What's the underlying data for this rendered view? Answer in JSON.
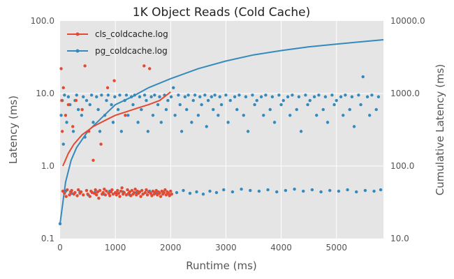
{
  "chart_data": {
    "type": "scatter",
    "title": "1K Object Reads (Cold Cache)",
    "xlabel": "Runtime (ms)",
    "ylabel": "Latency (ms)",
    "y2label": "Cumulative Latency (ms)",
    "xlim": [
      0,
      5850
    ],
    "ylim": [
      0.1,
      100
    ],
    "y2lim": [
      10,
      10000
    ],
    "yscale": "log",
    "y2scale": "log",
    "grid": true,
    "legend_position": "top-left",
    "x_ticks": [
      "0",
      "1000",
      "2000",
      "3000",
      "4000",
      "5000"
    ],
    "x_tick_values": [
      0,
      1000,
      2000,
      3000,
      4000,
      5000
    ],
    "y_ticks": [
      "0.1",
      "1.0",
      "10.0",
      "100.0"
    ],
    "y_tick_values": [
      0.1,
      1,
      10,
      100
    ],
    "y2_ticks": [
      "10.0",
      "100.0",
      "1000.0",
      "10000.0"
    ],
    "y2_tick_values": [
      10,
      100,
      1000,
      10000
    ],
    "series": [
      {
        "name": "cls_coldcache.log",
        "color": "#E24A33",
        "points": [
          [
            20,
            22
          ],
          [
            30,
            8
          ],
          [
            40,
            3
          ],
          [
            50,
            0.45
          ],
          [
            60,
            12
          ],
          [
            80,
            0.42
          ],
          [
            100,
            5
          ],
          [
            110,
            0.38
          ],
          [
            130,
            0.47
          ],
          [
            150,
            7
          ],
          [
            170,
            0.4
          ],
          [
            190,
            0.44
          ],
          [
            210,
            0.46
          ],
          [
            230,
            3.5
          ],
          [
            250,
            0.41
          ],
          [
            270,
            0.43
          ],
          [
            290,
            8
          ],
          [
            310,
            0.39
          ],
          [
            330,
            0.47
          ],
          [
            360,
            0.42
          ],
          [
            380,
            0.44
          ],
          [
            400,
            6
          ],
          [
            420,
            0.4
          ],
          [
            450,
            24
          ],
          [
            480,
            0.46
          ],
          [
            500,
            0.41
          ],
          [
            520,
            3
          ],
          [
            540,
            0.38
          ],
          [
            560,
            0.45
          ],
          [
            580,
            0.43
          ],
          [
            600,
            1.2
          ],
          [
            620,
            0.42
          ],
          [
            640,
            0.47
          ],
          [
            660,
            0.4
          ],
          [
            680,
            0.44
          ],
          [
            700,
            0.36
          ],
          [
            720,
            0.46
          ],
          [
            740,
            2
          ],
          [
            760,
            0.41
          ],
          [
            780,
            0.43
          ],
          [
            800,
            0.48
          ],
          [
            820,
            0.4
          ],
          [
            840,
            0.45
          ],
          [
            860,
            12
          ],
          [
            880,
            0.42
          ],
          [
            900,
            0.39
          ],
          [
            920,
            0.44
          ],
          [
            940,
            0.47
          ],
          [
            960,
            0.41
          ],
          [
            980,
            15
          ],
          [
            1000,
            0.43
          ],
          [
            1020,
            0.4
          ],
          [
            1040,
            0.46
          ],
          [
            1060,
            0.42
          ],
          [
            1080,
            0.38
          ],
          [
            1100,
            0.45
          ],
          [
            1120,
            0.5
          ],
          [
            1140,
            0.41
          ],
          [
            1160,
            0.43
          ],
          [
            1180,
            5
          ],
          [
            1200,
            0.4
          ],
          [
            1220,
            0.47
          ],
          [
            1240,
            0.42
          ],
          [
            1260,
            0.44
          ],
          [
            1280,
            0.39
          ],
          [
            1300,
            0.46
          ],
          [
            1320,
            0.41
          ],
          [
            1340,
            0.43
          ],
          [
            1360,
            0.48
          ],
          [
            1380,
            0.4
          ],
          [
            1400,
            0.45
          ],
          [
            1420,
            0.42
          ],
          [
            1440,
            0.44
          ],
          [
            1460,
            0.38
          ],
          [
            1480,
            0.46
          ],
          [
            1500,
            0.41
          ],
          [
            1520,
            24
          ],
          [
            1540,
            0.43
          ],
          [
            1560,
            0.47
          ],
          [
            1580,
            0.4
          ],
          [
            1600,
            0.44
          ],
          [
            1620,
            22
          ],
          [
            1640,
            0.42
          ],
          [
            1660,
            0.39
          ],
          [
            1680,
            0.45
          ],
          [
            1700,
            0.41
          ],
          [
            1720,
            0.43
          ],
          [
            1740,
            0.46
          ],
          [
            1760,
            0.4
          ],
          [
            1780,
            0.44
          ],
          [
            1800,
            0.42
          ],
          [
            1820,
            0.38
          ],
          [
            1840,
            0.45
          ],
          [
            1860,
            0.41
          ],
          [
            1880,
            0.43
          ],
          [
            1900,
            0.47
          ],
          [
            1920,
            0.4
          ],
          [
            1940,
            0.44
          ],
          [
            1960,
            0.42
          ],
          [
            1980,
            0.39
          ],
          [
            2000,
            0.45
          ],
          [
            2020,
            0.41
          ]
        ],
        "cumulative": [
          [
            50,
            100
          ],
          [
            150,
            150
          ],
          [
            250,
            200
          ],
          [
            400,
            270
          ],
          [
            600,
            350
          ],
          [
            800,
            420
          ],
          [
            1000,
            500
          ],
          [
            1200,
            560
          ],
          [
            1400,
            630
          ],
          [
            1600,
            700
          ],
          [
            1800,
            800
          ],
          [
            2000,
            1050
          ]
        ]
      },
      {
        "name": "pg_coldcache.log",
        "color": "#348ABD",
        "points": [
          [
            0,
            0.16
          ],
          [
            20,
            5
          ],
          [
            40,
            8
          ],
          [
            60,
            2
          ],
          [
            80,
            9.5
          ],
          [
            100,
            0.45
          ],
          [
            120,
            4
          ],
          [
            150,
            9
          ],
          [
            180,
            7
          ],
          [
            210,
            0.42
          ],
          [
            240,
            3
          ],
          [
            270,
            8
          ],
          [
            300,
            9.5
          ],
          [
            330,
            6
          ],
          [
            360,
            0.44
          ],
          [
            390,
            5
          ],
          [
            420,
            9
          ],
          [
            450,
            2.5
          ],
          [
            480,
            8
          ],
          [
            510,
            0.4
          ],
          [
            540,
            7
          ],
          [
            570,
            9.5
          ],
          [
            600,
            4
          ],
          [
            630,
            0.43
          ],
          [
            660,
            9
          ],
          [
            690,
            6
          ],
          [
            720,
            3
          ],
          [
            750,
            9.5
          ],
          [
            780,
            0.41
          ],
          [
            810,
            5
          ],
          [
            840,
            8
          ],
          [
            870,
            9.5
          ],
          [
            900,
            0.45
          ],
          [
            930,
            7
          ],
          [
            960,
            4
          ],
          [
            990,
            9
          ],
          [
            1020,
            0.42
          ],
          [
            1050,
            6
          ],
          [
            1080,
            9.5
          ],
          [
            1110,
            3
          ],
          [
            1140,
            0.44
          ],
          [
            1170,
            8
          ],
          [
            1200,
            9.5
          ],
          [
            1230,
            5
          ],
          [
            1260,
            0.4
          ],
          [
            1290,
            9
          ],
          [
            1320,
            7
          ],
          [
            1350,
            9.5
          ],
          [
            1380,
            0.43
          ],
          [
            1410,
            4
          ],
          [
            1440,
            9
          ],
          [
            1470,
            6
          ],
          [
            1500,
            0.41
          ],
          [
            1530,
            9.5
          ],
          [
            1560,
            8
          ],
          [
            1590,
            3
          ],
          [
            1620,
            0.45
          ],
          [
            1650,
            9
          ],
          [
            1680,
            5
          ],
          [
            1710,
            9.5
          ],
          [
            1740,
            0.42
          ],
          [
            1770,
            7
          ],
          [
            1800,
            9
          ],
          [
            1830,
            4
          ],
          [
            1860,
            0.44
          ],
          [
            1890,
            9.5
          ],
          [
            1920,
            6
          ],
          [
            1950,
            8
          ],
          [
            1980,
            0.4
          ],
          [
            2010,
            9
          ],
          [
            2050,
            12
          ],
          [
            2080,
            5
          ],
          [
            2110,
            0.43
          ],
          [
            2140,
            9.5
          ],
          [
            2170,
            7
          ],
          [
            2200,
            3
          ],
          [
            2230,
            0.46
          ],
          [
            2260,
            9
          ],
          [
            2290,
            6
          ],
          [
            2320,
            9.5
          ],
          [
            2350,
            0.42
          ],
          [
            2380,
            4
          ],
          [
            2410,
            8
          ],
          [
            2440,
            9.5
          ],
          [
            2470,
            0.44
          ],
          [
            2500,
            5
          ],
          [
            2530,
            9
          ],
          [
            2560,
            7
          ],
          [
            2590,
            0.41
          ],
          [
            2620,
            9.5
          ],
          [
            2650,
            3.5
          ],
          [
            2680,
            8
          ],
          [
            2710,
            0.45
          ],
          [
            2740,
            9
          ],
          [
            2770,
            6
          ],
          [
            2800,
            9.5
          ],
          [
            2830,
            0.43
          ],
          [
            2860,
            5
          ],
          [
            2890,
            9
          ],
          [
            2920,
            7
          ],
          [
            2960,
            0.47
          ],
          [
            3000,
            9.5
          ],
          [
            3040,
            4
          ],
          [
            3080,
            8
          ],
          [
            3120,
            0.44
          ],
          [
            3160,
            9
          ],
          [
            3200,
            6
          ],
          [
            3240,
            9.5
          ],
          [
            3280,
            0.48
          ],
          [
            3320,
            5
          ],
          [
            3360,
            9
          ],
          [
            3400,
            3
          ],
          [
            3440,
            0.46
          ],
          [
            3480,
            9.5
          ],
          [
            3520,
            7
          ],
          [
            3560,
            8
          ],
          [
            3600,
            0.45
          ],
          [
            3640,
            9
          ],
          [
            3680,
            5
          ],
          [
            3720,
            9.5
          ],
          [
            3760,
            0.47
          ],
          [
            3800,
            6
          ],
          [
            3840,
            9
          ],
          [
            3880,
            4
          ],
          [
            3920,
            0.44
          ],
          [
            3960,
            9.5
          ],
          [
            4000,
            7
          ],
          [
            4040,
            8
          ],
          [
            4080,
            0.46
          ],
          [
            4120,
            9
          ],
          [
            4160,
            5
          ],
          [
            4200,
            9.5
          ],
          [
            4240,
            0.48
          ],
          [
            4280,
            6
          ],
          [
            4320,
            9
          ],
          [
            4360,
            3
          ],
          [
            4400,
            0.45
          ],
          [
            4440,
            9.5
          ],
          [
            4480,
            7
          ],
          [
            4520,
            8
          ],
          [
            4560,
            0.47
          ],
          [
            4600,
            9
          ],
          [
            4640,
            5
          ],
          [
            4680,
            9.5
          ],
          [
            4720,
            0.44
          ],
          [
            4760,
            6
          ],
          [
            4800,
            9
          ],
          [
            4840,
            4
          ],
          [
            4880,
            0.46
          ],
          [
            4920,
            9.5
          ],
          [
            4960,
            7
          ],
          [
            5000,
            8
          ],
          [
            5040,
            0.45
          ],
          [
            5080,
            9
          ],
          [
            5120,
            5
          ],
          [
            5160,
            9.5
          ],
          [
            5200,
            0.47
          ],
          [
            5240,
            6
          ],
          [
            5280,
            9
          ],
          [
            5320,
            3.5
          ],
          [
            5360,
            0.44
          ],
          [
            5400,
            9.5
          ],
          [
            5440,
            7
          ],
          [
            5480,
            17
          ],
          [
            5520,
            0.46
          ],
          [
            5560,
            9
          ],
          [
            5600,
            5
          ],
          [
            5640,
            9.5
          ],
          [
            5680,
            0.45
          ],
          [
            5720,
            6
          ],
          [
            5760,
            9
          ],
          [
            5800,
            0.47
          ]
        ],
        "cumulative": [
          [
            0,
            16
          ],
          [
            100,
            60
          ],
          [
            200,
            120
          ],
          [
            300,
            180
          ],
          [
            500,
            300
          ],
          [
            800,
            500
          ],
          [
            1000,
            700
          ],
          [
            1300,
            900
          ],
          [
            1600,
            1200
          ],
          [
            2000,
            1600
          ],
          [
            2500,
            2200
          ],
          [
            3000,
            2800
          ],
          [
            3500,
            3400
          ],
          [
            4000,
            3900
          ],
          [
            4500,
            4400
          ],
          [
            5000,
            4800
          ],
          [
            5500,
            5200
          ],
          [
            5850,
            5500
          ]
        ]
      }
    ]
  }
}
